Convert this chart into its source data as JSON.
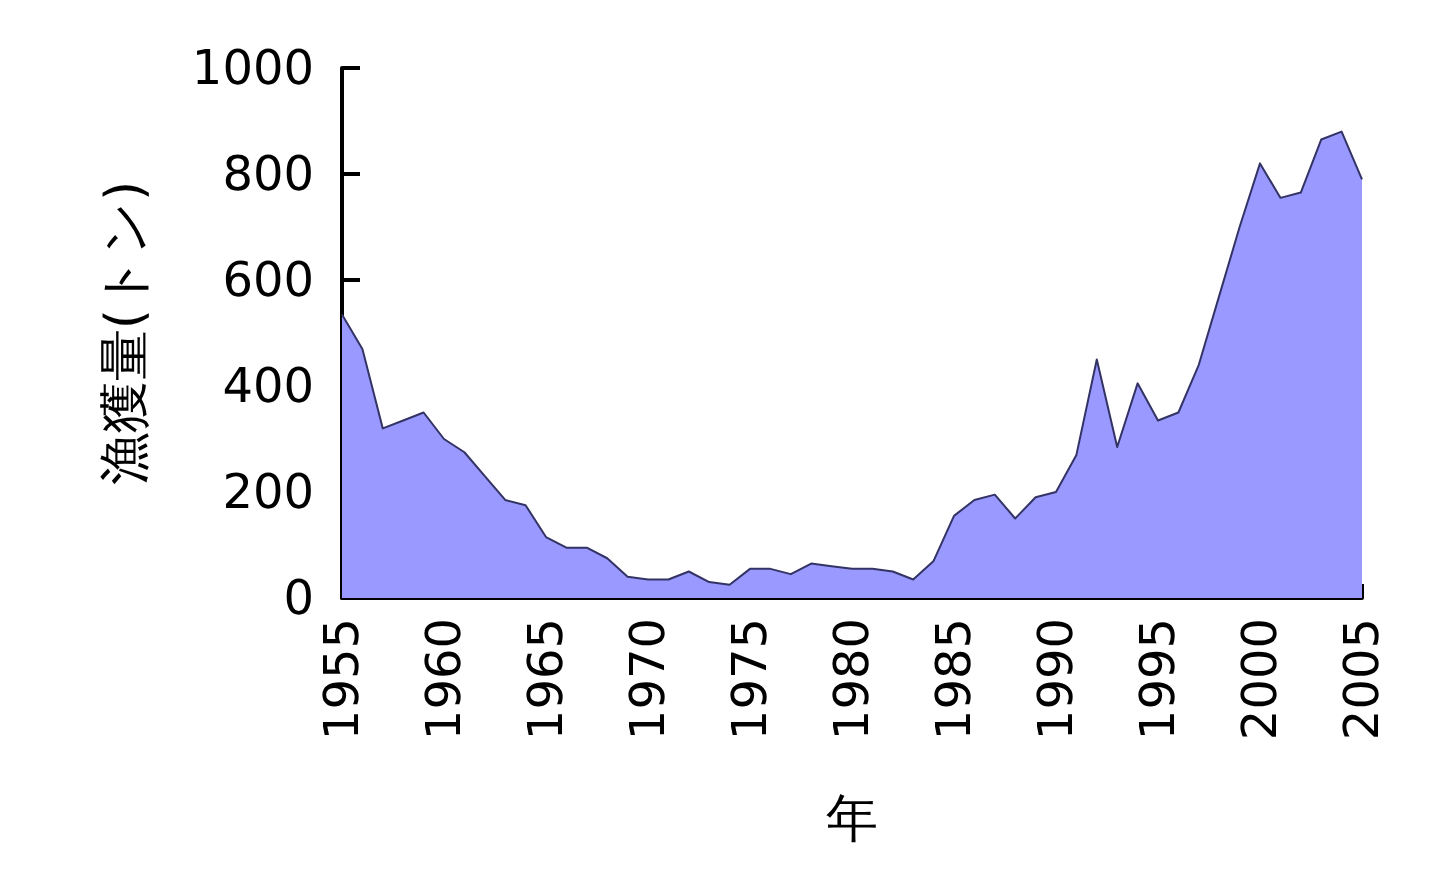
{
  "chart_data": {
    "type": "area",
    "xlabel": "年",
    "ylabel": "漁獲量(トン)",
    "x": [
      1955,
      1956,
      1957,
      1958,
      1959,
      1960,
      1961,
      1962,
      1963,
      1964,
      1965,
      1966,
      1967,
      1968,
      1969,
      1970,
      1971,
      1972,
      1973,
      1974,
      1975,
      1976,
      1977,
      1978,
      1979,
      1980,
      1981,
      1982,
      1983,
      1984,
      1985,
      1986,
      1987,
      1988,
      1989,
      1990,
      1991,
      1992,
      1993,
      1994,
      1995,
      1996,
      1997,
      1998,
      1999,
      2000,
      2001,
      2002,
      2003,
      2004,
      2005
    ],
    "series": [
      {
        "color": "#9999ff",
        "values": [
          535,
          470,
          320,
          335,
          350,
          300,
          275,
          230,
          185,
          175,
          115,
          95,
          95,
          75,
          40,
          35,
          35,
          50,
          30,
          25,
          55,
          55,
          45,
          65,
          60,
          55,
          55,
          50,
          35,
          70,
          155,
          185,
          195,
          150,
          190,
          200,
          270,
          450,
          285,
          405,
          335,
          350,
          440,
          570,
          700,
          820,
          755,
          765,
          865,
          880,
          790
        ]
      }
    ],
    "xlim": [
      1955,
      2005
    ],
    "xticks": [
      1955,
      1960,
      1965,
      1970,
      1975,
      1980,
      1985,
      1990,
      1995,
      2000,
      2005
    ],
    "ylim": [
      0,
      1000
    ],
    "yticks": [
      0,
      200,
      400,
      600,
      800,
      1000
    ],
    "grid": false
  }
}
